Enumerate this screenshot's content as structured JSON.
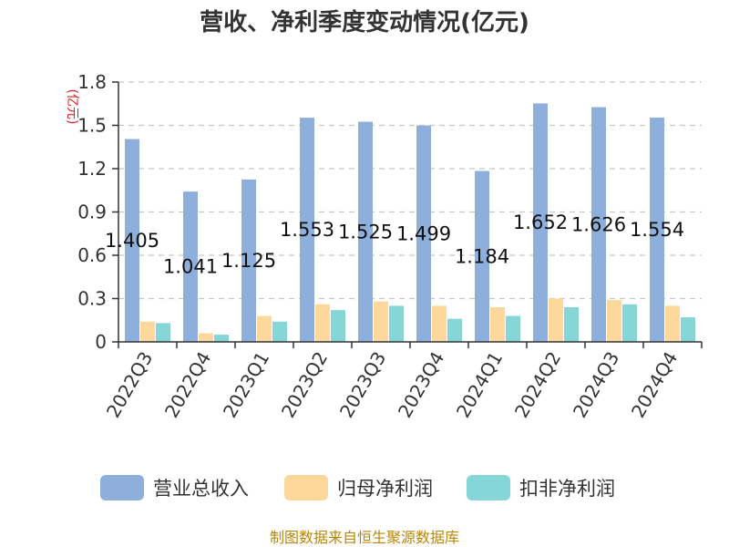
{
  "chart_data": {
    "type": "bar",
    "title": "营收、净利季度变动情况(亿元)",
    "unit_label": "(亿元)",
    "categories": [
      "2022Q3",
      "2022Q4",
      "2023Q1",
      "2023Q2",
      "2023Q3",
      "2023Q4",
      "2024Q1",
      "2024Q2",
      "2024Q3",
      "2024Q4"
    ],
    "ylim": [
      0,
      1.8
    ],
    "yticks": [
      "0",
      "0.3",
      "0.6",
      "0.9",
      "1.2",
      "1.5",
      "1.8"
    ],
    "grid": true,
    "legend_position": "bottom",
    "series": [
      {
        "name": "营业总收入",
        "color": "#8eaedb",
        "values": [
          1.405,
          1.041,
          1.125,
          1.553,
          1.525,
          1.499,
          1.184,
          1.652,
          1.626,
          1.554
        ],
        "labels": [
          "1.405",
          "1.041",
          "1.125",
          "1.553",
          "1.525",
          "1.499",
          "1.184",
          "1.652",
          "1.626",
          "1.554"
        ]
      },
      {
        "name": "归母净利润",
        "color": "#fdd89a",
        "values": [
          0.14,
          0.06,
          0.18,
          0.26,
          0.28,
          0.25,
          0.24,
          0.3,
          0.29,
          0.25
        ]
      },
      {
        "name": "扣非净利润",
        "color": "#86d6d8",
        "values": [
          0.13,
          0.05,
          0.14,
          0.22,
          0.25,
          0.16,
          0.18,
          0.24,
          0.26,
          0.17
        ]
      }
    ]
  },
  "source_text": "制图数据来自恒生聚源数据库"
}
